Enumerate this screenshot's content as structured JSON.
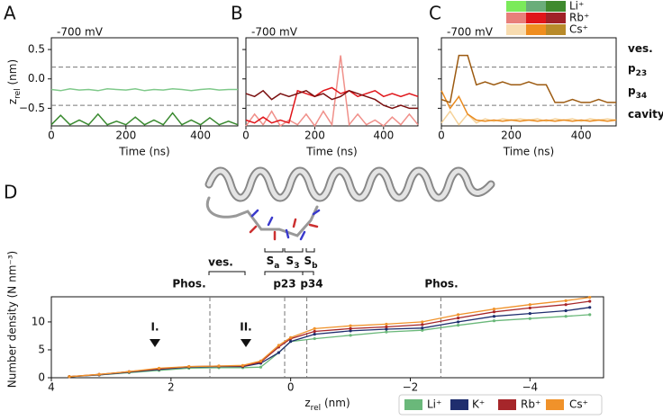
{
  "chart_data": [
    {
      "type": "line",
      "panel": "A",
      "title": "-700 mV",
      "xlabel": "Time (ns)",
      "ylabel": {
        "main": "z",
        "sub": "rel",
        "unit": " (nm)"
      },
      "x": [
        0,
        25,
        50,
        75,
        100,
        125,
        150,
        175,
        200,
        225,
        250,
        275,
        300,
        325,
        350,
        375,
        400,
        425,
        450,
        475,
        500
      ],
      "series": [
        {
          "color": "#7fc98a",
          "values": [
            -0.18,
            -0.2,
            -0.17,
            -0.19,
            -0.18,
            -0.2,
            -0.17,
            -0.18,
            -0.19,
            -0.17,
            -0.2,
            -0.18,
            -0.19,
            -0.17,
            -0.18,
            -0.2,
            -0.18,
            -0.17,
            -0.19,
            -0.18,
            -0.18
          ]
        },
        {
          "color": "#3a8a30",
          "values": [
            -0.78,
            -0.62,
            -0.78,
            -0.7,
            -0.78,
            -0.6,
            -0.78,
            -0.72,
            -0.78,
            -0.65,
            -0.78,
            -0.7,
            -0.78,
            -0.58,
            -0.78,
            -0.7,
            -0.78,
            -0.66,
            -0.78,
            -0.72,
            -0.78
          ]
        }
      ],
      "hlines": [
        0.2,
        -0.45
      ],
      "xlim": [
        0,
        500
      ],
      "xticks": [
        0,
        200,
        400
      ],
      "ylim": [
        -0.8,
        0.7
      ],
      "yticks": [
        0.5,
        {
          "value": 0,
          "label": "0.0"
        },
        {
          "value": -0.5,
          "label": "−0.5"
        }
      ]
    },
    {
      "type": "line",
      "panel": "B",
      "title": "-700 mV",
      "xlabel": "Time (ns)",
      "x": [
        0,
        25,
        50,
        75,
        100,
        125,
        150,
        175,
        200,
        225,
        250,
        275,
        300,
        325,
        350,
        375,
        400,
        425,
        450,
        475,
        500
      ],
      "series": [
        {
          "color": "#f0908a",
          "values": [
            -0.8,
            -0.6,
            -0.78,
            -0.55,
            -0.8,
            -0.7,
            -0.78,
            -0.6,
            -0.8,
            -0.55,
            -0.78,
            0.4,
            -0.78,
            -0.6,
            -0.78,
            -0.7,
            -0.8,
            -0.65,
            -0.78,
            -0.6,
            -0.78
          ]
        },
        {
          "color": "#e0151a",
          "values": [
            -0.7,
            -0.75,
            -0.65,
            -0.75,
            -0.7,
            -0.75,
            -0.2,
            -0.25,
            -0.3,
            -0.2,
            -0.15,
            -0.25,
            -0.2,
            -0.3,
            -0.25,
            -0.2,
            -0.3,
            -0.25,
            -0.3,
            -0.25,
            -0.3
          ]
        },
        {
          "color": "#7a0f0f",
          "values": [
            -0.25,
            -0.3,
            -0.2,
            -0.35,
            -0.25,
            -0.3,
            -0.25,
            -0.2,
            -0.3,
            -0.25,
            -0.35,
            -0.3,
            -0.2,
            -0.25,
            -0.3,
            -0.35,
            -0.45,
            -0.5,
            -0.45,
            -0.5,
            -0.5
          ]
        }
      ],
      "hlines": [
        0.2,
        -0.45
      ],
      "xlim": [
        0,
        500
      ],
      "xticks": [
        0,
        200,
        400
      ],
      "ylim": [
        -0.8,
        0.7
      ],
      "yticks": [
        0.5,
        0,
        -0.5
      ]
    },
    {
      "type": "line",
      "panel": "C",
      "title": "-700 mV",
      "xlabel": "Time (ns)",
      "x": [
        0,
        25,
        50,
        75,
        100,
        125,
        150,
        175,
        200,
        225,
        250,
        275,
        300,
        325,
        350,
        375,
        400,
        425,
        450,
        475,
        500
      ],
      "series": [
        {
          "color": "#f5d29a",
          "values": [
            -0.75,
            -0.55,
            -0.78,
            -0.6,
            -0.75,
            -0.68,
            -0.72,
            -0.68,
            -0.7,
            -0.68,
            -0.7,
            -0.68,
            -0.72,
            -0.68,
            -0.7,
            -0.68,
            -0.72,
            -0.68,
            -0.7,
            -0.68,
            -0.7
          ]
        },
        {
          "color": "#e98a1e",
          "values": [
            -0.2,
            -0.5,
            -0.3,
            -0.6,
            -0.7,
            -0.72,
            -0.7,
            -0.72,
            -0.7,
            -0.72,
            -0.7,
            -0.72,
            -0.7,
            -0.72,
            -0.7,
            -0.72,
            -0.7,
            -0.72,
            -0.7,
            -0.72,
            -0.7
          ]
        },
        {
          "color": "#9c5a10",
          "values": [
            -0.35,
            -0.4,
            0.4,
            0.4,
            -0.1,
            -0.05,
            -0.1,
            -0.05,
            -0.1,
            -0.1,
            -0.05,
            -0.1,
            -0.1,
            -0.4,
            -0.4,
            -0.35,
            -0.4,
            -0.4,
            -0.35,
            -0.4,
            -0.4
          ]
        }
      ],
      "hlines": [
        0.2,
        -0.45
      ],
      "xlim": [
        0,
        500
      ],
      "xticks": [
        0,
        200,
        400
      ],
      "ylim": [
        -0.8,
        0.7
      ],
      "yticks": [
        0.5,
        0,
        -0.5
      ],
      "region_labels": [
        {
          "text": "ves."
        },
        {
          "text": "p",
          "sub": "23"
        },
        {
          "text": "p",
          "sub": "34"
        },
        {
          "text": "cavity"
        }
      ],
      "legend": [
        {
          "label": "Li⁺",
          "colors": [
            "#7bea5a",
            "#6aad7a",
            "#3f8a2e"
          ]
        },
        {
          "label": "Rb⁺",
          "colors": [
            "#e87f7a",
            "#e0151a",
            "#a02228"
          ]
        },
        {
          "label": "Cs⁺",
          "colors": [
            "#f8dcb0",
            "#ef8d1f",
            "#b88a2a"
          ]
        }
      ]
    },
    {
      "type": "line",
      "panel": "D",
      "xlabel": {
        "main": "z",
        "sub": "rel",
        "unit": " (nm)"
      },
      "ylabel": "Number density (N nm⁻³)",
      "x": [
        3.7,
        3.2,
        2.7,
        2.2,
        1.7,
        1.2,
        0.8,
        0.5,
        0.2,
        0,
        -0.4,
        -1,
        -1.6,
        -2.2,
        -2.8,
        -3.4,
        -4,
        -4.6,
        -5
      ],
      "series": [
        {
          "name": "Li⁺",
          "color": "#6ab87a",
          "values": [
            0.2,
            0.5,
            0.9,
            1.3,
            1.7,
            1.8,
            1.8,
            1.9,
            4.5,
            6.5,
            7,
            7.6,
            8.2,
            8.5,
            9.4,
            10.2,
            10.6,
            11,
            11.3
          ]
        },
        {
          "name": "K⁺",
          "color": "#1f2e6e",
          "values": [
            0.2,
            0.5,
            1,
            1.5,
            1.9,
            2,
            2,
            2.6,
            4.5,
            6.5,
            7.8,
            8.4,
            8.7,
            8.9,
            10,
            11,
            11.5,
            12,
            12.6
          ]
        },
        {
          "name": "Rb⁺",
          "color": "#a6262a",
          "values": [
            0.2,
            0.6,
            1.1,
            1.6,
            2,
            2.1,
            2.1,
            2.8,
            5.5,
            7,
            8.3,
            8.8,
            9.1,
            9.5,
            10.7,
            11.8,
            12.5,
            13.1,
            13.7
          ]
        },
        {
          "name": "Cs⁺",
          "color": "#f0922a",
          "values": [
            0.2,
            0.6,
            1.1,
            1.7,
            2,
            2.1,
            2.2,
            3,
            5.8,
            7.2,
            8.8,
            9.3,
            9.6,
            10,
            11.3,
            12.3,
            13.1,
            13.8,
            14.4
          ]
        }
      ],
      "vlines": [
        1.35,
        0.1,
        -0.27,
        -2.51
      ],
      "xlim": [
        4,
        -5.23
      ],
      "xticks": [
        4,
        2,
        0,
        {
          "value": -2,
          "label": "−2"
        },
        {
          "value": -4,
          "label": "−4"
        }
      ],
      "ylim": [
        0,
        14.5
      ],
      "yticks": [
        0,
        5,
        10
      ],
      "annotations": [
        {
          "text": "Phos."
        },
        {
          "text": "ves."
        },
        {
          "text": "p23"
        },
        {
          "text": "p34"
        },
        {
          "text": "Phos."
        },
        {
          "text": "I."
        },
        {
          "text": "II."
        }
      ],
      "sites": [
        {
          "text": "S",
          "sub": "a"
        },
        {
          "text": "S",
          "sub": "3"
        },
        {
          "text": "S",
          "sub": "b"
        }
      ]
    }
  ]
}
